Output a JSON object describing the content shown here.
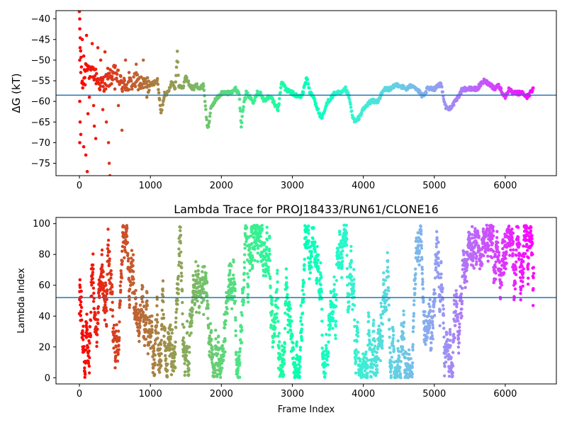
{
  "chart_data": [
    {
      "type": "scatter",
      "title": "",
      "xlabel": "",
      "ylabel": "ΔG (kT)",
      "xlim": [
        -330,
        6720
      ],
      "ylim": [
        -78,
        -38
      ],
      "xticks": [
        0,
        1000,
        2000,
        3000,
        4000,
        5000,
        6000
      ],
      "yticks": [
        -75,
        -70,
        -65,
        -60,
        -55,
        -50,
        -45,
        -40
      ],
      "hline": -58.5,
      "hline_color": "#1f77b4",
      "colormap": "rainbow (red at frame 0 to violet at frame 6400)",
      "grid": false,
      "legend": "none",
      "series": [
        {
          "x": [
            0,
            40,
            100,
            150,
            200,
            300,
            400,
            500,
            600,
            700,
            800,
            900,
            1000,
            1100,
            1150,
            1200,
            1250,
            1300,
            1350,
            1380,
            1400,
            1450,
            1500,
            1550,
            1600,
            1650,
            1700,
            1750,
            1800,
            1820,
            1850,
            1900,
            2000,
            2100,
            2200,
            2250,
            2280,
            2300,
            2350,
            2400,
            2450,
            2500,
            2550,
            2600,
            2650,
            2700,
            2800,
            2850,
            2900,
            3000,
            3100,
            3150,
            3200,
            3250,
            3300,
            3400,
            3420,
            3500,
            3600,
            3700,
            3750,
            3800,
            3850,
            3900,
            4000,
            4100,
            4200,
            4300,
            4400,
            4450,
            4500,
            4600,
            4700,
            4800,
            4850,
            4900,
            5000,
            5050,
            5100,
            5150,
            5200,
            5250,
            5300,
            5400,
            5500,
            5600,
            5700,
            5800,
            5850,
            5900,
            6000,
            6050,
            6100,
            6200,
            6250,
            6300,
            6350,
            6400
          ],
          "values": [
            -40,
            -57,
            -50,
            -54,
            -53,
            -56,
            -55,
            -53,
            -56,
            -56,
            -55,
            -56,
            -56,
            -55,
            -63,
            -58,
            -58,
            -55,
            -57,
            -48,
            -56,
            -57,
            -54,
            -56,
            -57,
            -56,
            -57,
            -56,
            -66,
            -66,
            -62,
            -60,
            -58,
            -58,
            -57,
            -58,
            -66,
            -62,
            -58,
            -59,
            -60,
            -58,
            -58,
            -60,
            -59,
            -59,
            -62,
            -55,
            -57,
            -58,
            -59,
            -58,
            -54,
            -58,
            -59,
            -64,
            -64,
            -60,
            -58,
            -58,
            -57,
            -59,
            -64,
            -65,
            -62,
            -60,
            -60,
            -57,
            -57,
            -56,
            -56,
            -57,
            -56,
            -58,
            -59,
            -57,
            -57,
            -56,
            -56,
            -61,
            -62,
            -61,
            -60,
            -57,
            -57,
            -57,
            -55,
            -56,
            -57,
            -56,
            -59,
            -57,
            -58,
            -58,
            -58,
            -59,
            -58,
            -57
          ],
          "scatter_early": [
            [
              5,
              -40
            ],
            [
              5,
              -50
            ],
            [
              5,
              -60
            ],
            [
              5,
              -70
            ],
            [
              10,
              -47
            ],
            [
              10,
              -65
            ],
            [
              20,
              -53
            ],
            [
              20,
              -68
            ],
            [
              40,
              -45
            ],
            [
              60,
              -49
            ],
            [
              60,
              -71
            ],
            [
              80,
              -56
            ],
            [
              90,
              -73
            ],
            [
              100,
              -44
            ],
            [
              110,
              -77
            ],
            [
              120,
              -63
            ],
            [
              140,
              -59
            ],
            [
              160,
              -52
            ],
            [
              180,
              -46
            ],
            [
              200,
              -61
            ],
            [
              210,
              -66
            ],
            [
              230,
              -69
            ],
            [
              260,
              -47
            ],
            [
              300,
              -50
            ],
            [
              330,
              -62
            ],
            [
              360,
              -48
            ],
            [
              380,
              -65
            ],
            [
              400,
              -52
            ],
            [
              410,
              -70
            ],
            [
              420,
              -75
            ],
            [
              430,
              -78
            ],
            [
              460,
              -54
            ],
            [
              500,
              -57
            ],
            [
              550,
              -61
            ],
            [
              600,
              -67
            ],
            [
              650,
              -50
            ],
            [
              700,
              -53
            ],
            [
              800,
              -51
            ],
            [
              850,
              -56
            ],
            [
              900,
              -50
            ],
            [
              950,
              -59
            ]
          ]
        }
      ]
    },
    {
      "type": "scatter",
      "title": "Lambda Trace for PROJ18433/RUN61/CLONE16",
      "xlabel": "Frame Index",
      "ylabel": "Lambda Index",
      "xlim": [
        -330,
        6720
      ],
      "ylim": [
        -4,
        104
      ],
      "xticks": [
        0,
        1000,
        2000,
        3000,
        4000,
        5000,
        6000
      ],
      "yticks": [
        0,
        20,
        40,
        60,
        80,
        100
      ],
      "hline": 52,
      "hline_color": "#1f77b4",
      "colormap": "rainbow (red at frame 0 to violet at frame 6400)",
      "grid": false,
      "legend": "none",
      "series": [
        {
          "x_range": [
            0,
            6400
          ],
          "y_range": [
            0,
            99
          ],
          "note_points": "dense random walk of lambda index across frames"
        }
      ]
    }
  ]
}
